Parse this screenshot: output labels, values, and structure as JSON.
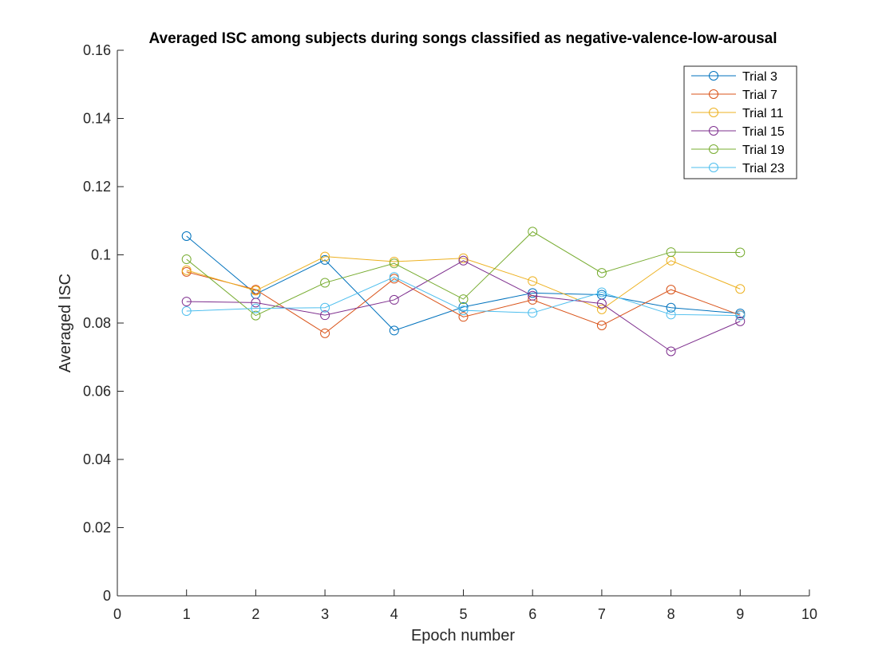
{
  "chart_data": {
    "type": "line",
    "title": "Averaged ISC among subjects during songs classified as negative-valence-low-arousal",
    "xlabel": "Epoch number",
    "ylabel": "Averaged ISC",
    "xlim": [
      0,
      10
    ],
    "ylim": [
      0,
      0.16
    ],
    "xticks": [
      "0",
      "1",
      "2",
      "3",
      "4",
      "5",
      "6",
      "7",
      "8",
      "9",
      "10"
    ],
    "yticks": [
      "0",
      "0.02",
      "0.04",
      "0.06",
      "0.08",
      "0.1",
      "0.12",
      "0.14",
      "0.16"
    ],
    "grid": false,
    "legend_position": "top-right",
    "marker": "open-circle",
    "x": [
      1,
      2,
      3,
      4,
      5,
      6,
      7,
      8,
      9
    ],
    "series": [
      {
        "name": "Trial 3",
        "color": "#0072BD",
        "values": [
          0.1055,
          0.0885,
          0.0985,
          0.0778,
          0.0847,
          0.0888,
          0.0883,
          0.0845,
          0.0828
        ]
      },
      {
        "name": "Trial 7",
        "color": "#D95319",
        "values": [
          0.095,
          0.0898,
          0.077,
          0.093,
          0.0818,
          0.0868,
          0.0793,
          0.0898,
          0.0823
        ]
      },
      {
        "name": "Trial 11",
        "color": "#EDB120",
        "values": [
          0.0955,
          0.0895,
          0.0995,
          0.098,
          0.099,
          0.0923,
          0.084,
          0.0983,
          0.09
        ]
      },
      {
        "name": "Trial 15",
        "color": "#7E2F8E",
        "values": [
          0.0863,
          0.086,
          0.0823,
          0.0868,
          0.0983,
          0.088,
          0.0857,
          0.0717,
          0.0805
        ]
      },
      {
        "name": "Trial 19",
        "color": "#77AC30",
        "values": [
          0.0987,
          0.0822,
          0.0918,
          0.0975,
          0.087,
          0.1068,
          0.0947,
          0.1008,
          0.1007
        ]
      },
      {
        "name": "Trial 23",
        "color": "#4DBEEE",
        "values": [
          0.0835,
          0.0843,
          0.0845,
          0.0935,
          0.0837,
          0.083,
          0.089,
          0.0825,
          0.0822
        ]
      }
    ]
  }
}
